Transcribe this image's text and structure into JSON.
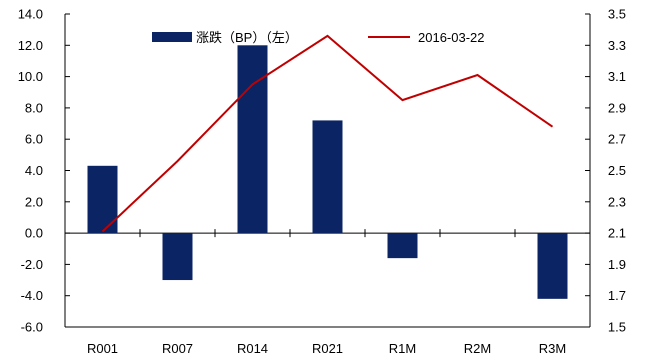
{
  "chart_data": {
    "type": "bar+line",
    "categories": [
      "R001",
      "R007",
      "R014",
      "R021",
      "R1M",
      "R2M",
      "R3M"
    ],
    "series": [
      {
        "name": "涨跌（BP）（左）",
        "type": "bar",
        "axis": "left",
        "color": "#0b2463",
        "values": [
          4.3,
          -3.0,
          12.0,
          7.2,
          -1.6,
          0.0,
          -4.2
        ]
      },
      {
        "name": "2016-03-22",
        "type": "line",
        "axis": "right",
        "color": "#c00000",
        "values": [
          2.11,
          2.56,
          3.05,
          3.36,
          2.95,
          3.11,
          2.78
        ]
      }
    ],
    "y_left": {
      "lim": [
        -6.0,
        14.0
      ],
      "ticks": [
        "14.0",
        "12.0",
        "10.0",
        "8.0",
        "6.0",
        "4.0",
        "2.0",
        "0.0",
        "-2.0",
        "-4.0",
        "-6.0"
      ]
    },
    "y_right": {
      "lim": [
        1.5,
        3.5
      ],
      "ticks": [
        "3.5",
        "3.3",
        "3.1",
        "2.9",
        "2.7",
        "2.5",
        "2.3",
        "2.1",
        "1.9",
        "1.7",
        "1.5"
      ]
    },
    "legend_position": "top",
    "grid": false
  }
}
